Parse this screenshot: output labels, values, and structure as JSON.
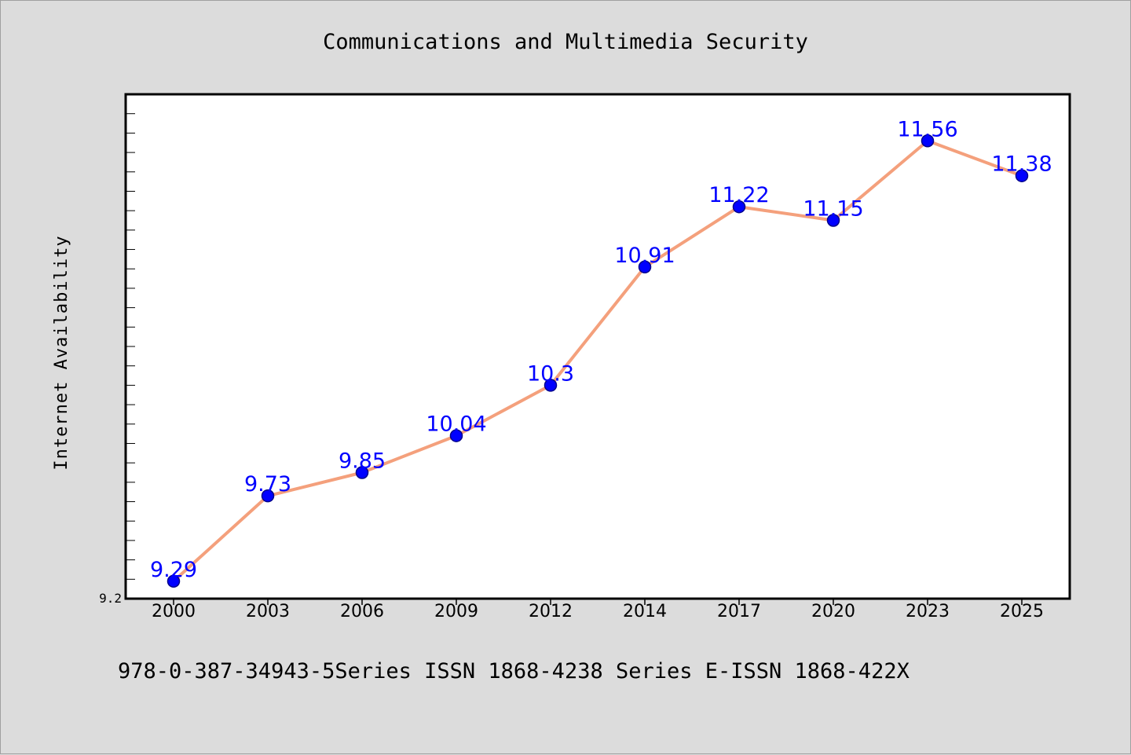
{
  "chart_data": {
    "type": "line",
    "title": "Communications and Multimedia Security",
    "ylabel": "Internet Availability",
    "xlabel": "",
    "categories": [
      "2000",
      "2003",
      "2006",
      "2009",
      "2012",
      "2014",
      "2017",
      "2020",
      "2023",
      "2025"
    ],
    "series": [
      {
        "values": [
          9.29,
          9.73,
          9.85,
          10.04,
          10.3,
          10.91,
          11.22,
          11.15,
          11.56,
          11.38
        ],
        "data_labels": [
          "9.29",
          "9.73",
          "9.85",
          "10.04",
          "10.3",
          "10.91",
          "11.22",
          "11.15",
          "11.56",
          "11.38"
        ]
      }
    ],
    "ylim": [
      9.2,
      11.8
    ],
    "y_tick_labels": [
      "9.2"
    ],
    "grid": false,
    "legend": "none",
    "colors": {
      "line": "#f4a07c",
      "marker_fill": "#0000ff",
      "marker_edge": "#00008b",
      "data_label": "#0000ff",
      "plot_background": "#ffffff",
      "figure_background": "#dcdcdc"
    }
  },
  "footer": {
    "text": "978-0-387-34943-5Series ISSN 1868-4238 Series E-ISSN 1868-422X"
  }
}
